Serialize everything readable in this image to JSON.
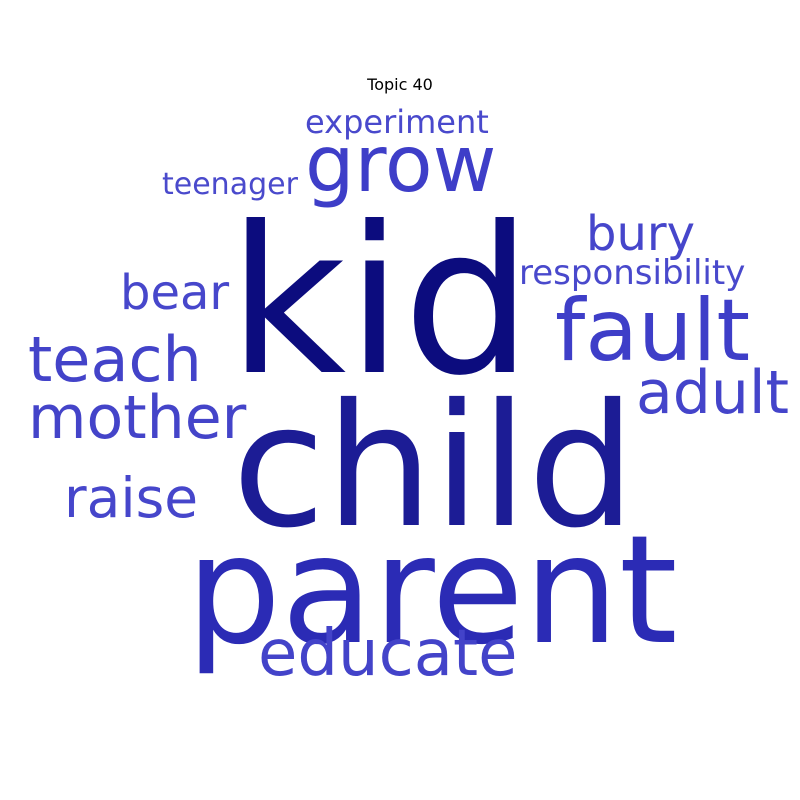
{
  "title": "Topic 40",
  "words": [
    {
      "text": "kid",
      "weight": 1.0,
      "color": "#0c0c7e"
    },
    {
      "text": "child",
      "weight": 0.92,
      "color": "#1c1c95"
    },
    {
      "text": "parent",
      "weight": 0.85,
      "color": "#2b2bb5"
    },
    {
      "text": "grow",
      "weight": 0.45,
      "color": "#3e3ec8"
    },
    {
      "text": "fault",
      "weight": 0.52,
      "color": "#3e3ec8"
    },
    {
      "text": "educate",
      "weight": 0.4,
      "color": "#4343c9"
    },
    {
      "text": "teach",
      "weight": 0.38,
      "color": "#4343c9"
    },
    {
      "text": "mother",
      "weight": 0.37,
      "color": "#4444c9"
    },
    {
      "text": "adult",
      "weight": 0.36,
      "color": "#4444ca"
    },
    {
      "text": "raise",
      "weight": 0.33,
      "color": "#4646cb"
    },
    {
      "text": "bury",
      "weight": 0.3,
      "color": "#4646cb"
    },
    {
      "text": "bear",
      "weight": 0.29,
      "color": "#4747cb"
    },
    {
      "text": "responsibility",
      "weight": 0.22,
      "color": "#4949cc"
    },
    {
      "text": "experiment",
      "weight": 0.21,
      "color": "#4949cc"
    },
    {
      "text": "teenager",
      "weight": 0.2,
      "color": "#4a4acc"
    }
  ]
}
